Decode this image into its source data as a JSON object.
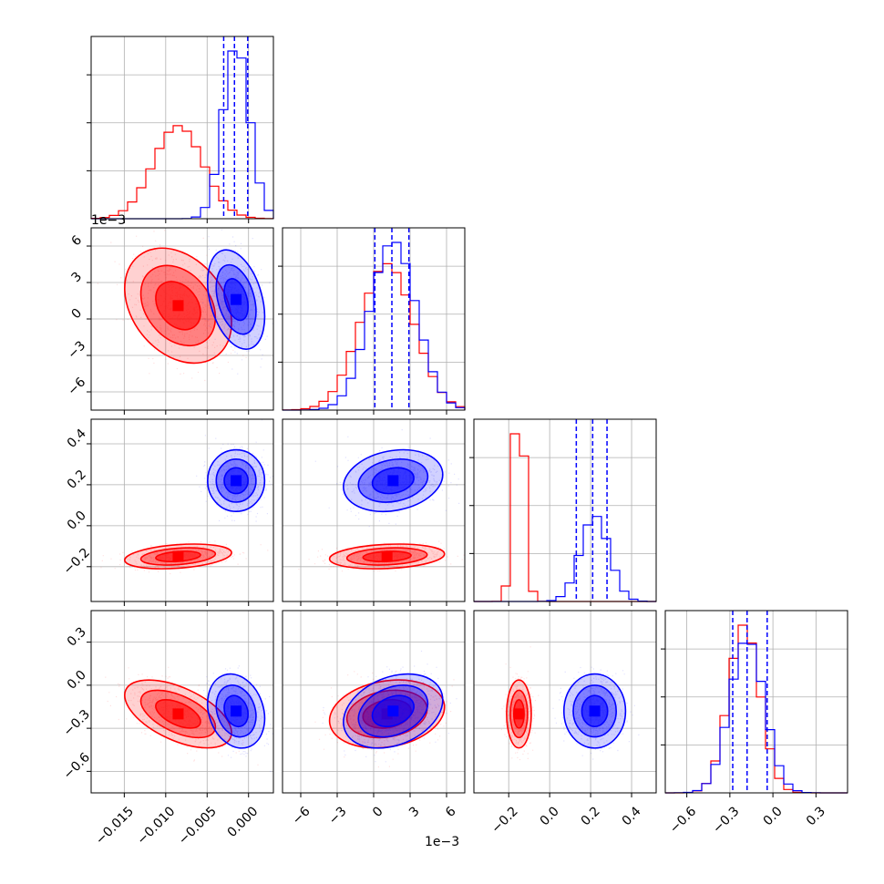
{
  "chart_data": {
    "type": "corner",
    "colors": {
      "red": "#ff0000",
      "blue": "#0000ff",
      "grid": "#b0b0b0"
    },
    "series": [
      {
        "color": "red",
        "mean": [
          -0.0085,
          1.1,
          -0.15,
          -0.2
        ],
        "std": [
          0.003,
          2.2,
          0.028,
          0.11
        ],
        "corr": {
          "0_1": -0.3,
          "0_2": 0.3,
          "0_3": -0.55,
          "1_2": 0.2,
          "1_3": 0.2,
          "2_3": 0.0
        }
      },
      {
        "color": "blue",
        "mean": [
          -0.0015,
          1.6,
          0.22,
          -0.18
        ],
        "std": [
          0.0016,
          1.9,
          0.07,
          0.12
        ],
        "corr": {
          "0_1": -0.35,
          "0_2": 0.0,
          "0_3": -0.2,
          "1_2": 0.2,
          "1_3": 0.3,
          "2_3": 0.0
        }
      }
    ],
    "quantile_lines": [
      [
        -0.003,
        -0.0017,
        -0.0001
      ],
      [
        0.1,
        1.5,
        2.9
      ],
      [
        0.13,
        0.21,
        0.28
      ],
      [
        -0.28,
        -0.18,
        -0.04
      ]
    ],
    "ranges": [
      [
        -0.019,
        0.003
      ],
      [
        -7.5,
        7.5
      ],
      [
        -0.37,
        0.52
      ],
      [
        -0.75,
        0.52
      ]
    ],
    "ticks": [
      {
        "values": [
          -0.015,
          -0.01,
          -0.005,
          0.0
        ],
        "labels": [
          "−0.015",
          "−0.010",
          "−0.005",
          "0.000"
        ]
      },
      {
        "values": [
          -6,
          -3,
          0,
          3,
          6
        ],
        "labels": [
          "−6",
          "−3",
          "0",
          "3",
          "6"
        ]
      },
      {
        "values": [
          -0.2,
          0.0,
          0.2,
          0.4
        ],
        "labels": [
          "−0.2",
          "0.0",
          "0.2",
          "0.4"
        ]
      },
      {
        "values": [
          -0.6,
          -0.3,
          0.0,
          0.3
        ],
        "labels": [
          "−0.6",
          "−0.3",
          "0.0",
          "0.3"
        ]
      }
    ],
    "offset_labels": {
      "top": "1e−3",
      "bottom": "1e−3"
    },
    "grid": true
  }
}
